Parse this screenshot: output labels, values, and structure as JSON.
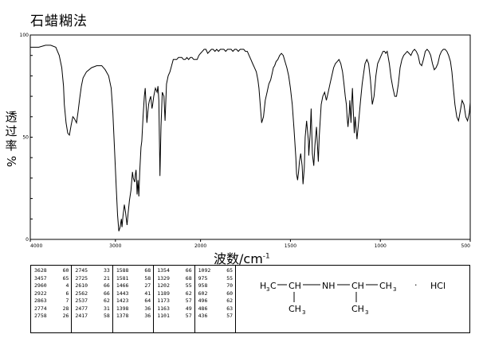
{
  "page": {
    "method_title": "石蜡糊法"
  },
  "chart_data": {
    "type": "line",
    "ylabel_chars": [
      "透",
      "过",
      "率"
    ],
    "ylabel_unit": "%",
    "xlabel_text": "波数/cm",
    "xlabel_exp": "-1",
    "xlim": [
      4000,
      500
    ],
    "ylim": [
      0,
      100
    ],
    "x_breaks": [
      2000
    ],
    "xticks": [
      {
        "value": 4000,
        "label": "4000"
      },
      {
        "value": 3000,
        "label": "3000"
      },
      {
        "value": 2000,
        "label": "2000"
      },
      {
        "value": 1500,
        "label": "1500"
      },
      {
        "value": 1000,
        "label": "1000"
      },
      {
        "value": 500,
        "label": "500"
      }
    ],
    "yticks": [
      {
        "value": 100,
        "label": "100"
      },
      {
        "value": 50,
        "label": "50"
      },
      {
        "value": 0,
        "label": "0"
      }
    ],
    "series": [
      {
        "x": [
          4000,
          3900,
          3820,
          3760,
          3700,
          3660,
          3630,
          3610,
          3600,
          3580,
          3560,
          3540,
          3520,
          3500,
          3480,
          3457,
          3440,
          3420,
          3400,
          3380,
          3340,
          3280,
          3220,
          3160,
          3120,
          3080,
          3050,
          3030,
          3010,
          2990,
          2975,
          2960,
          2945,
          2930,
          2922,
          2912,
          2895,
          2880,
          2863,
          2850,
          2835,
          2818,
          2800,
          2790,
          2774,
          2765,
          2758,
          2752,
          2745,
          2735,
          2725,
          2715,
          2700,
          2690,
          2675,
          2660,
          2650,
          2640,
          2630,
          2620,
          2610,
          2600,
          2585,
          2570,
          2562,
          2550,
          2530,
          2510,
          2500,
          2490,
          2477,
          2465,
          2450,
          2430,
          2417,
          2400,
          2380,
          2360,
          2340,
          2320,
          2300,
          2280,
          2260,
          2240,
          2220,
          2200,
          2180,
          2160,
          2140,
          2120,
          2100,
          2080,
          2060,
          2040,
          2020,
          2000,
          1990,
          1980,
          1970,
          1960,
          1950,
          1940,
          1930,
          1920,
          1910,
          1900,
          1890,
          1880,
          1870,
          1860,
          1850,
          1840,
          1830,
          1820,
          1810,
          1800,
          1790,
          1780,
          1770,
          1760,
          1750,
          1740,
          1730,
          1720,
          1710,
          1700,
          1690,
          1681,
          1675,
          1668,
          1660,
          1650,
          1640,
          1630,
          1620,
          1610,
          1600,
          1595,
          1588,
          1580,
          1570,
          1560,
          1550,
          1540,
          1530,
          1520,
          1510,
          1500,
          1490,
          1480,
          1470,
          1466,
          1460,
          1455,
          1450,
          1443,
          1435,
          1430,
          1423,
          1418,
          1410,
          1400,
          1398,
          1390,
          1385,
          1378,
          1370,
          1364,
          1355,
          1345,
          1340,
          1329,
          1320,
          1310,
          1300,
          1290,
          1280,
          1270,
          1260,
          1250,
          1240,
          1230,
          1220,
          1210,
          1202,
          1195,
          1189,
          1185,
          1180,
          1173,
          1170,
          1163,
          1160,
          1155,
          1150,
          1145,
          1140,
          1130,
          1120,
          1110,
          1101,
          1092,
          1085,
          1075,
          1065,
          1055,
          1045,
          1035,
          1025,
          1015,
          1005,
          995,
          985,
          976,
          970,
          962,
          958,
          950,
          940,
          930,
          920,
          910,
          900,
          890,
          880,
          870,
          860,
          850,
          840,
          830,
          820,
          810,
          800,
          790,
          780,
          770,
          760,
          750,
          740,
          730,
          720,
          710,
          700,
          690,
          680,
          670,
          660,
          650,
          640,
          630,
          620,
          610,
          602,
          595,
          585,
          575,
          565,
          555,
          545,
          535,
          525,
          515,
          505,
          500
        ],
        "y": [
          94,
          94,
          95,
          95,
          94,
          90,
          84,
          75,
          66,
          57,
          52,
          51,
          56,
          60,
          59,
          57,
          62,
          69,
          75,
          79,
          82,
          84,
          85,
          85,
          83,
          80,
          74,
          62,
          44,
          25,
          12,
          4,
          6,
          10,
          6,
          11,
          17,
          13,
          7,
          13,
          19,
          24,
          33,
          30,
          28,
          32,
          34,
          30,
          22,
          29,
          21,
          33,
          45,
          48,
          60,
          70,
          74,
          66,
          57,
          62,
          66,
          68,
          70,
          64,
          66,
          70,
          74,
          72,
          75,
          68,
          31,
          55,
          72,
          70,
          58,
          76,
          80,
          82,
          85,
          88,
          88,
          88,
          89,
          89,
          89,
          88,
          88,
          89,
          88,
          89,
          89,
          88,
          88,
          88,
          90,
          91,
          92,
          93,
          93,
          91,
          92,
          93,
          93,
          92,
          93,
          92,
          93,
          93,
          93,
          92,
          93,
          93,
          93,
          92,
          93,
          93,
          92,
          93,
          93,
          93,
          92,
          92,
          90,
          88,
          86,
          84,
          82,
          78,
          74,
          66,
          57,
          60,
          68,
          72,
          76,
          78,
          82,
          84,
          85,
          87,
          88,
          90,
          91,
          90,
          87,
          84,
          80,
          74,
          66,
          54,
          40,
          32,
          29,
          33,
          38,
          42,
          36,
          27,
          35,
          50,
          58,
          48,
          41,
          52,
          64,
          42,
          36,
          46,
          55,
          38,
          50,
          66,
          70,
          72,
          68,
          72,
          76,
          80,
          84,
          86,
          87,
          88,
          86,
          82,
          76,
          70,
          66,
          60,
          55,
          62,
          68,
          57,
          65,
          74,
          62,
          52,
          60,
          49,
          58,
          68,
          76,
          82,
          86,
          88,
          86,
          78,
          66,
          70,
          80,
          86,
          88,
          90,
          92,
          92,
          91,
          92,
          90,
          86,
          79,
          74,
          70,
          70,
          76,
          84,
          88,
          90,
          91,
          92,
          91,
          90,
          92,
          93,
          92,
          90,
          86,
          85,
          88,
          92,
          93,
          92,
          90,
          86,
          83,
          84,
          86,
          90,
          92,
          93,
          93,
          92,
          90,
          87,
          82,
          75,
          66,
          60,
          58,
          63,
          68,
          66,
          60,
          58,
          62,
          67
        ]
      }
    ]
  },
  "peak_table": {
    "columns": [
      [
        [
          "3628",
          "60"
        ],
        [
          "3457",
          "65"
        ],
        [
          "2960",
          "4"
        ],
        [
          "2922",
          "6"
        ],
        [
          "2863",
          "7"
        ],
        [
          "2774",
          "28"
        ],
        [
          "2758",
          "26"
        ]
      ],
      [
        [
          "2745",
          "33"
        ],
        [
          "2725",
          "21"
        ],
        [
          "2610",
          "66"
        ],
        [
          "2562",
          "66"
        ],
        [
          "2537",
          "62"
        ],
        [
          "2477",
          "31"
        ],
        [
          "2417",
          "58"
        ]
      ],
      [
        [
          "1588",
          "68"
        ],
        [
          "1581",
          "58"
        ],
        [
          "1466",
          "27"
        ],
        [
          "1443",
          "41"
        ],
        [
          "1423",
          "64"
        ],
        [
          "1398",
          "36"
        ],
        [
          "1378",
          "36"
        ]
      ],
      [
        [
          "1354",
          "66"
        ],
        [
          "1329",
          "68"
        ],
        [
          "1202",
          "55"
        ],
        [
          "1189",
          "62"
        ],
        [
          "1173",
          "57"
        ],
        [
          "1163",
          "49"
        ],
        [
          "1101",
          "57"
        ]
      ],
      [
        [
          "1092",
          "65"
        ],
        [
          "975",
          "55"
        ],
        [
          "958",
          "70"
        ],
        [
          "602",
          "60"
        ],
        [
          "496",
          "62"
        ],
        [
          "486",
          "63"
        ],
        [
          "436",
          "57"
        ]
      ]
    ]
  },
  "structure": {
    "h3c_h": "H",
    "h3c_sub": "3",
    "h3c_c": "C",
    "ch_left": "CH",
    "nh": "NH",
    "ch_right": "CH",
    "ch3_right_main": "CH",
    "ch3_right_sub": "3",
    "ch3_bottom_left_main": "CH",
    "ch3_bottom_left_sub": "3",
    "ch3_bottom_right_main": "CH",
    "ch3_bottom_right_sub": "3",
    "dot": "·",
    "salt": "HCl"
  }
}
